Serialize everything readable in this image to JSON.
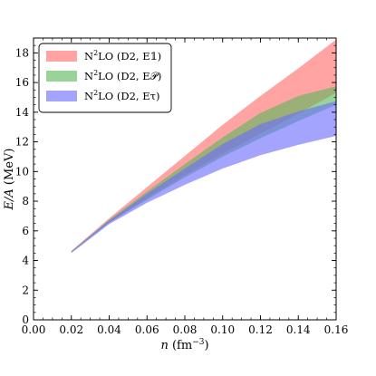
{
  "chart_data": {
    "type": "area",
    "xlabel": "n (fm⁻³)",
    "xlabel_parts": {
      "var": "n",
      "unit_open": "(fm",
      "unit_exp": "−3",
      "unit_close": ")"
    },
    "ylabel": "E/A (MeV)",
    "ylabel_parts": {
      "var": "E/A",
      "unit": "(MeV)"
    },
    "xlim": [
      0.0,
      0.16
    ],
    "ylim": [
      0,
      19
    ],
    "x_ticks": [
      0.0,
      0.02,
      0.04,
      0.06,
      0.08,
      0.1,
      0.12,
      0.14,
      0.16
    ],
    "x_tick_labels": [
      "0.00",
      "0.02",
      "0.04",
      "0.06",
      "0.08",
      "0.10",
      "0.12",
      "0.14",
      "0.16"
    ],
    "y_ticks": [
      0,
      2,
      4,
      6,
      8,
      10,
      12,
      14,
      16,
      18
    ],
    "y_tick_labels": [
      "0",
      "2",
      "4",
      "6",
      "8",
      "10",
      "12",
      "14",
      "16",
      "18"
    ],
    "grid": false,
    "legend_position": "top-left",
    "x": [
      0.02,
      0.04,
      0.06,
      0.08,
      0.1,
      0.12,
      0.14,
      0.16
    ],
    "series": [
      {
        "name": "N²LO (D2, E𝟙)",
        "label_parts": {
          "pre": "N",
          "sup": "2",
          "post": "LO (D2, E𝟙)"
        },
        "color": "#ff6b6b",
        "lower": [
          4.55,
          6.55,
          8.2,
          9.75,
          11.2,
          12.55,
          13.9,
          15.3
        ],
        "upper": [
          4.65,
          6.85,
          8.95,
          11.05,
          13.15,
          15.1,
          16.95,
          18.9
        ]
      },
      {
        "name": "N²LO (D2, E𝒫)",
        "label_parts": {
          "pre": "N",
          "sup": "2",
          "post": "LO (D2, E𝒫)"
        },
        "color": "#5cb85c",
        "lower": [
          4.55,
          6.55,
          8.1,
          9.6,
          11.0,
          12.25,
          13.4,
          14.5
        ],
        "upper": [
          4.62,
          6.75,
          8.65,
          10.5,
          12.3,
          13.95,
          15.1,
          15.75
        ]
      },
      {
        "name": "N²LO (D2, Eτ)",
        "label_parts": {
          "pre": "N",
          "sup": "2",
          "post": "LO (D2, Eτ)"
        },
        "color": "#6c6cff",
        "lower": [
          4.5,
          6.45,
          7.9,
          9.1,
          10.2,
          11.1,
          11.8,
          12.4
        ],
        "upper": [
          4.6,
          6.7,
          8.5,
          10.2,
          11.85,
          13.2,
          14.05,
          14.75
        ]
      }
    ]
  }
}
